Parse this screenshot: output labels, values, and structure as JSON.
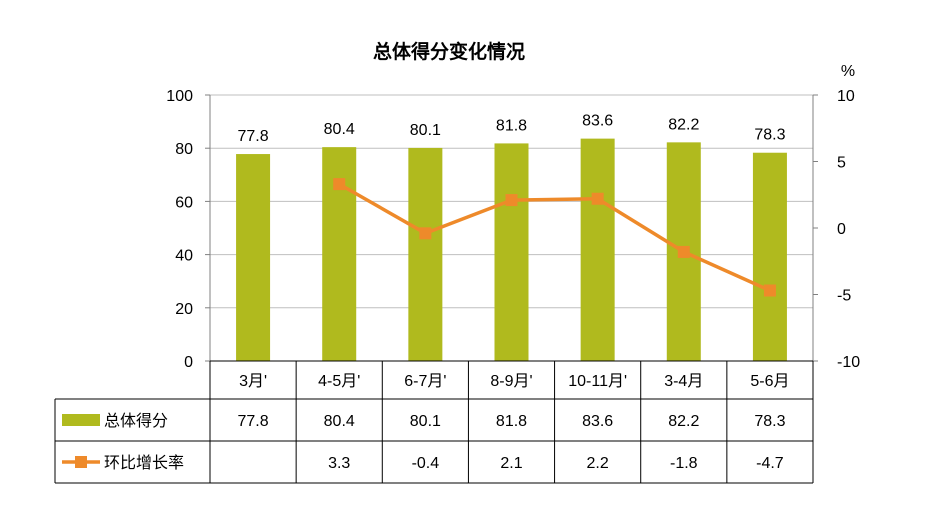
{
  "chart_data": {
    "type": "bar",
    "title": "总体得分变化情况",
    "categories": [
      "3月'",
      "4-5月'",
      "6-7月'",
      "8-9月'",
      "10-11月'",
      "3-4月",
      "5-6月"
    ],
    "series": [
      {
        "name": "总体得分",
        "type": "bar",
        "axis": "left",
        "values": [
          77.8,
          80.4,
          80.1,
          81.8,
          83.6,
          82.2,
          78.3
        ],
        "labels": [
          "77.8",
          "80.4",
          "80.1",
          "81.8",
          "83.6",
          "82.2",
          "78.3"
        ]
      },
      {
        "name": "环比增长率",
        "type": "line",
        "axis": "right",
        "values": [
          null,
          3.3,
          -0.4,
          2.1,
          2.2,
          -1.8,
          -4.7
        ],
        "labels": [
          "",
          "3.3",
          "-0.4",
          "2.1",
          "2.2",
          "-1.8",
          "-4.7"
        ]
      }
    ],
    "y_left": {
      "min": 0,
      "max": 100,
      "ticks": [
        "0",
        "20",
        "40",
        "60",
        "80",
        "100"
      ]
    },
    "y_right": {
      "min": -10,
      "max": 10,
      "ticks": [
        "-10",
        "-5",
        "0",
        "5",
        "10"
      ],
      "unit": "%"
    },
    "grid": true,
    "data_table": true,
    "colors": {
      "bar": "#B0BA1E",
      "line": "#EE8A2A",
      "grid": "#BFBFBF",
      "table_border": "#000000"
    }
  }
}
